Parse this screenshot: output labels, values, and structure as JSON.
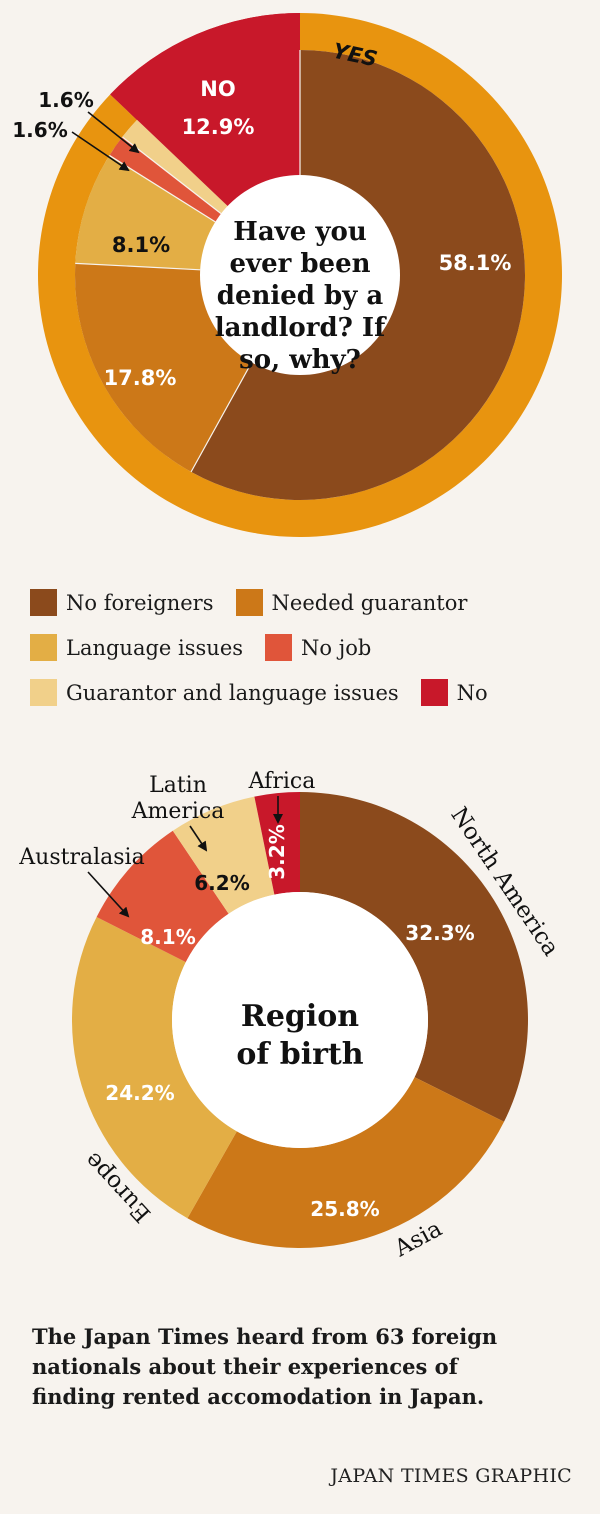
{
  "chart_data": [
    {
      "type": "pie",
      "title": "Have you ever been denied by a landlord? If so, why?",
      "title_lines": [
        "Have you",
        "ever been",
        "denied by a",
        "landlord? If",
        "so, why?"
      ],
      "outer_ring": [
        {
          "label": "YES",
          "value": 87.1,
          "color": "#e8940f"
        },
        {
          "label": "NO",
          "value": 12.9,
          "color": "#c8182a"
        }
      ],
      "slices": [
        {
          "label": "No foreigners",
          "value": 58.1,
          "display": "58.1%",
          "color": "#8b4a1c"
        },
        {
          "label": "Needed guarantor",
          "value": 17.8,
          "display": "17.8%",
          "color": "#cc7818"
        },
        {
          "label": "Language issues",
          "value": 8.1,
          "display": "8.1%",
          "color": "#e3ae45"
        },
        {
          "label": "No job",
          "value": 1.6,
          "display": "1.6%",
          "color": "#e0553a"
        },
        {
          "label": "Guarantor and language issues",
          "value": 1.6,
          "display": "1.6%",
          "color": "#f1d08a"
        },
        {
          "label": "No",
          "value": 12.9,
          "display": "12.9%",
          "color": "#c8182a"
        }
      ],
      "no_label": "NO",
      "yes_label": "YES"
    },
    {
      "type": "pie",
      "title": "Region of birth",
      "title_lines": [
        "Region",
        "of birth"
      ],
      "slices": [
        {
          "label": "North America",
          "value": 32.3,
          "display": "32.3%",
          "color": "#8b4a1c"
        },
        {
          "label": "Asia",
          "value": 25.8,
          "display": "25.8%",
          "color": "#cc7818"
        },
        {
          "label": "Europe",
          "value": 24.2,
          "display": "24.2%",
          "color": "#e3ae45"
        },
        {
          "label": "Australasia",
          "value": 8.1,
          "display": "8.1%",
          "color": "#e0553a"
        },
        {
          "label": "Latin America",
          "value": 6.2,
          "display": "6.2%",
          "color": "#f1d08a"
        },
        {
          "label": "Africa",
          "value": 3.2,
          "display": "3.2%",
          "color": "#c8182a"
        }
      ],
      "latin_lines": [
        "Latin",
        "America"
      ]
    }
  ],
  "legend": [
    [
      {
        "label": "No foreigners",
        "color": "#8b4a1c"
      },
      {
        "label": "Needed guarantor",
        "color": "#cc7818"
      }
    ],
    [
      {
        "label": "Language issues",
        "color": "#e3ae45"
      },
      {
        "label": "No job",
        "color": "#e0553a"
      }
    ],
    [
      {
        "label": "Guarantor and language issues",
        "color": "#f1d08a"
      },
      {
        "label": "No",
        "color": "#c8182a"
      }
    ]
  ],
  "footnote_lines": [
    "The Japan Times heard from 63 foreign",
    "nationals about their experiences of",
    "finding rented accomodation in Japan."
  ],
  "credit": "JAPAN TIMES GRAPHIC"
}
